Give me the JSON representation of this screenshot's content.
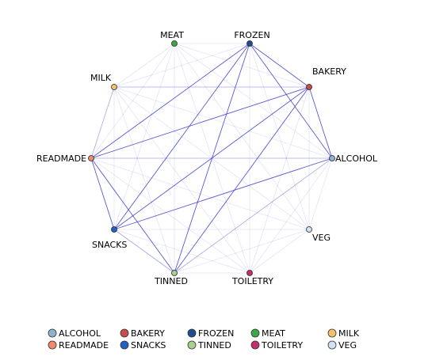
{
  "chart_data": {
    "type": "network",
    "nodes": [
      {
        "id": "FROZEN",
        "label": "FROZEN",
        "color": "#1f4e8c"
      },
      {
        "id": "BAKERY",
        "label": "BAKERY",
        "color": "#c84b4b"
      },
      {
        "id": "ALCOHOL",
        "label": "ALCOHOL",
        "color": "#8fb3cf"
      },
      {
        "id": "VEG",
        "label": "VEG",
        "color": "#cfe3f5"
      },
      {
        "id": "TOILETRY",
        "label": "TOILETRY",
        "color": "#c0306a"
      },
      {
        "id": "TINNED",
        "label": "TINNED",
        "color": "#a8d08d"
      },
      {
        "id": "SNACKS",
        "label": "SNACKS",
        "color": "#1e63c4"
      },
      {
        "id": "READMADE",
        "label": "READMADE",
        "color": "#f08a6e"
      },
      {
        "id": "MILK",
        "label": "MILK",
        "color": "#f5c26b"
      },
      {
        "id": "MEAT",
        "label": "MEAT",
        "color": "#3aa845"
      }
    ],
    "edges": [
      {
        "source": "FROZEN",
        "target": "BAKERY",
        "strength": "strong"
      },
      {
        "source": "FROZEN",
        "target": "ALCOHOL",
        "strength": "strong"
      },
      {
        "source": "FROZEN",
        "target": "TINNED",
        "strength": "strong"
      },
      {
        "source": "FROZEN",
        "target": "SNACKS",
        "strength": "strong"
      },
      {
        "source": "FROZEN",
        "target": "READMADE",
        "strength": "strong"
      },
      {
        "source": "BAKERY",
        "target": "ALCOHOL",
        "strength": "strong"
      },
      {
        "source": "BAKERY",
        "target": "TINNED",
        "strength": "strong"
      },
      {
        "source": "BAKERY",
        "target": "SNACKS",
        "strength": "strong"
      },
      {
        "source": "BAKERY",
        "target": "READMADE",
        "strength": "strong"
      },
      {
        "source": "ALCOHOL",
        "target": "SNACKS",
        "strength": "strong"
      },
      {
        "source": "ALCOHOL",
        "target": "READMADE",
        "strength": "medium"
      },
      {
        "source": "ALCOHOL",
        "target": "TINNED",
        "strength": "medium"
      },
      {
        "source": "SNACKS",
        "target": "READMADE",
        "strength": "strong"
      },
      {
        "source": "TINNED",
        "target": "READMADE",
        "strength": "strong"
      },
      {
        "source": "TINNED",
        "target": "SNACKS",
        "strength": "medium"
      },
      {
        "source": "MILK",
        "target": "READMADE",
        "strength": "medium"
      },
      {
        "source": "MILK",
        "target": "BAKERY",
        "strength": "medium"
      },
      {
        "source": "FROZEN",
        "target": "MEAT",
        "strength": "weak"
      },
      {
        "source": "FROZEN",
        "target": "MILK",
        "strength": "weak"
      },
      {
        "source": "FROZEN",
        "target": "VEG",
        "strength": "weak"
      },
      {
        "source": "FROZEN",
        "target": "TOILETRY",
        "strength": "weak"
      },
      {
        "source": "BAKERY",
        "target": "MEAT",
        "strength": "weak"
      },
      {
        "source": "BAKERY",
        "target": "VEG",
        "strength": "weak"
      },
      {
        "source": "BAKERY",
        "target": "TOILETRY",
        "strength": "weak"
      },
      {
        "source": "ALCOHOL",
        "target": "VEG",
        "strength": "weak"
      },
      {
        "source": "ALCOHOL",
        "target": "TOILETRY",
        "strength": "weak"
      },
      {
        "source": "ALCOHOL",
        "target": "MEAT",
        "strength": "weak"
      },
      {
        "source": "ALCOHOL",
        "target": "MILK",
        "strength": "weak"
      },
      {
        "source": "VEG",
        "target": "TOILETRY",
        "strength": "weak"
      },
      {
        "source": "VEG",
        "target": "TINNED",
        "strength": "weak"
      },
      {
        "source": "VEG",
        "target": "SNACKS",
        "strength": "weak"
      },
      {
        "source": "VEG",
        "target": "READMADE",
        "strength": "weak"
      },
      {
        "source": "VEG",
        "target": "MILK",
        "strength": "weak"
      },
      {
        "source": "VEG",
        "target": "MEAT",
        "strength": "weak"
      },
      {
        "source": "TOILETRY",
        "target": "TINNED",
        "strength": "weak"
      },
      {
        "source": "TOILETRY",
        "target": "SNACKS",
        "strength": "weak"
      },
      {
        "source": "TOILETRY",
        "target": "READMADE",
        "strength": "weak"
      },
      {
        "source": "TOILETRY",
        "target": "MILK",
        "strength": "weak"
      },
      {
        "source": "TOILETRY",
        "target": "MEAT",
        "strength": "weak"
      },
      {
        "source": "TINNED",
        "target": "MILK",
        "strength": "weak"
      },
      {
        "source": "TINNED",
        "target": "MEAT",
        "strength": "weak"
      },
      {
        "source": "SNACKS",
        "target": "MILK",
        "strength": "weak"
      },
      {
        "source": "SNACKS",
        "target": "MEAT",
        "strength": "weak"
      },
      {
        "source": "READMADE",
        "target": "MEAT",
        "strength": "weak"
      },
      {
        "source": "MILK",
        "target": "MEAT",
        "strength": "weak"
      }
    ],
    "legend": {
      "placement": "bottom",
      "items": [
        {
          "label": "ALCOHOL",
          "color": "#8fb3cf"
        },
        {
          "label": "BAKERY",
          "color": "#c84b4b"
        },
        {
          "label": "FROZEN",
          "color": "#1f4e8c"
        },
        {
          "label": "MEAT",
          "color": "#3aa845"
        },
        {
          "label": "MILK",
          "color": "#f5c26b"
        },
        {
          "label": "READMADE",
          "color": "#f08a6e"
        },
        {
          "label": "SNACKS",
          "color": "#1e63c4"
        },
        {
          "label": "TINNED",
          "color": "#a8d08d"
        },
        {
          "label": "TOILETRY",
          "color": "#c0306a"
        },
        {
          "label": "VEG",
          "color": "#cfe3f5"
        }
      ]
    },
    "edge_color": "#3c3ccc"
  }
}
